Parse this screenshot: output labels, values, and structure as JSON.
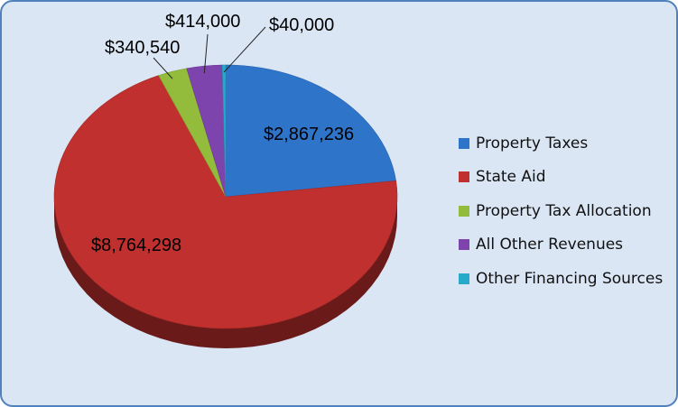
{
  "chart_data": {
    "type": "pie",
    "title": "",
    "slices": [
      {
        "name": "Property Taxes",
        "value": 2867236,
        "label": "$2,867,236",
        "color": "#2e74c9"
      },
      {
        "name": "State Aid",
        "value": 8764298,
        "label": "$8,764,298",
        "color": "#c0302e"
      },
      {
        "name": "Property Tax Allocation",
        "value": 340540,
        "label": "$340,540",
        "color": "#94bc3c"
      },
      {
        "name": "All Other Revenues",
        "value": 414000,
        "label": "$414,000",
        "color": "#7e44ad"
      },
      {
        "name": "Other Financing Sources",
        "value": 40000,
        "label": "$40,000",
        "color": "#27a9c9"
      }
    ],
    "legend_position": "right",
    "style": "3d"
  }
}
